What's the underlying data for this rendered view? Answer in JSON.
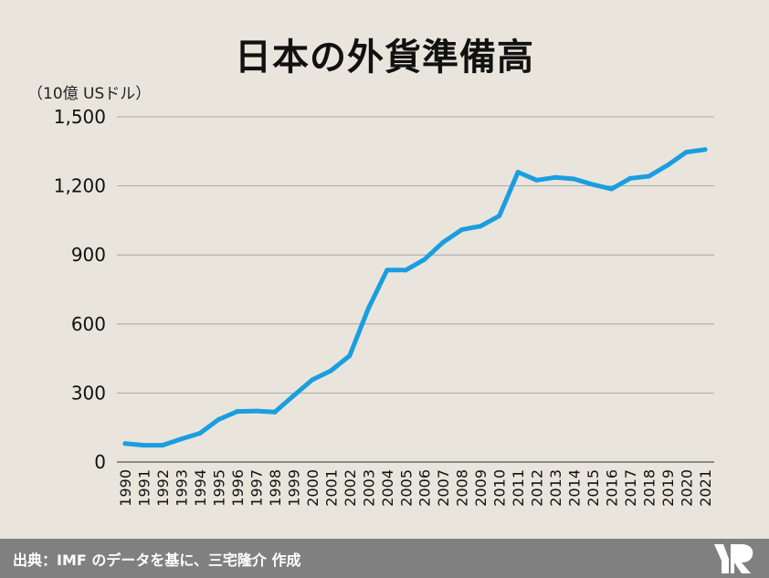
{
  "title": "日本の外貨準備高",
  "unit_label": "（10億 USドル）",
  "source": "出典：IMF のデータを基に、三宅隆介 作成",
  "colors": {
    "line": "#1a9ee0",
    "grid": "#999999",
    "background": "#e9e5dc",
    "footer": "#808080"
  },
  "chart_data": {
    "type": "line",
    "title": "日本の外貨準備高",
    "ylabel": "（10億 USドル）",
    "xlabel": "",
    "ylim": [
      0,
      1500
    ],
    "yticks": [
      "0",
      "300",
      "600",
      "900",
      "1,200",
      "1,500"
    ],
    "ytick_values": [
      0,
      300,
      600,
      900,
      1200,
      1500
    ],
    "grid": true,
    "x": [
      "1990",
      "1991",
      "1992",
      "1993",
      "1994",
      "1995",
      "1996",
      "1997",
      "1998",
      "1999",
      "2000",
      "2001",
      "2002",
      "2003",
      "2004",
      "2005",
      "2006",
      "2007",
      "2008",
      "2009",
      "2010",
      "2011",
      "2012",
      "2013",
      "2014",
      "2015",
      "2016",
      "2017",
      "2018",
      "2019",
      "2020",
      "2021"
    ],
    "series": [
      {
        "values": [
          80,
          73,
          73,
          100,
          125,
          185,
          220,
          222,
          217,
          288,
          357,
          397,
          462,
          667,
          834,
          834,
          880,
          955,
          1010,
          1025,
          1070,
          1260,
          1225,
          1237,
          1230,
          1206,
          1187,
          1233,
          1242,
          1290,
          1347,
          1358
        ]
      }
    ]
  }
}
